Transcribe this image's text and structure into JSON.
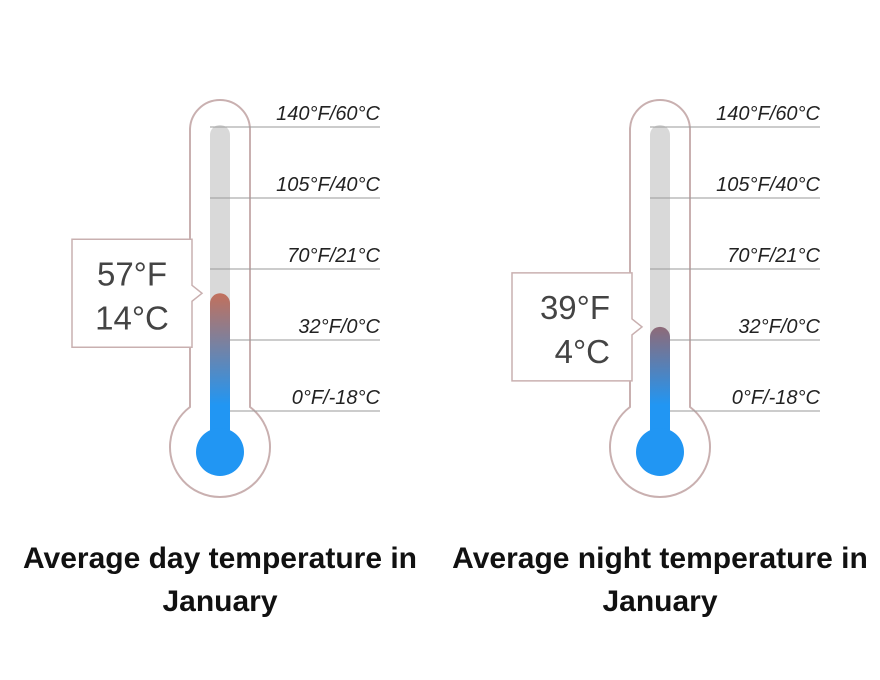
{
  "chart_data": [
    {
      "type": "thermometer",
      "title": "Average day temperature in January",
      "values": [
        57
      ],
      "value_labels": [
        [
          "57°F",
          "14°C"
        ]
      ],
      "color": "#2196f3",
      "top_color": "#c2705c",
      "ylim": [
        0,
        140
      ],
      "yticks": [
        {
          "value": 140,
          "label": "140°F/60°C"
        },
        {
          "value": 105,
          "label": "105°F/40°C"
        },
        {
          "value": 70,
          "label": "70°F/21°C"
        },
        {
          "value": 32,
          "label": "32°F/0°C"
        },
        {
          "value": 0,
          "label": "0°F/-18°C"
        }
      ]
    },
    {
      "type": "thermometer",
      "title": "Average night temperature in January",
      "values": [
        39
      ],
      "value_labels": [
        [
          "39°F",
          "4°C"
        ]
      ],
      "color": "#2196f3",
      "top_color": "#8e6a78",
      "ylim": [
        0,
        140
      ],
      "yticks": [
        {
          "value": 140,
          "label": "140°F/60°C"
        },
        {
          "value": 105,
          "label": "105°F/40°C"
        },
        {
          "value": 70,
          "label": "70°F/21°C"
        },
        {
          "value": 32,
          "label": "32°F/0°C"
        },
        {
          "value": 0,
          "label": "0°F/-18°C"
        }
      ]
    }
  ]
}
